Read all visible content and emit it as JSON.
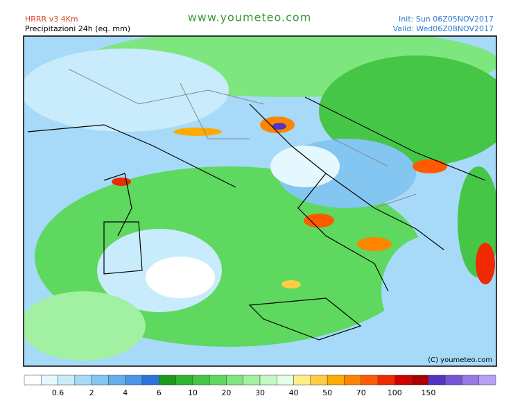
{
  "header": {
    "model": "HRRR v3 4Km",
    "product": "Precipitazioni 24h (eq. mm)",
    "site": "www.youmeteo.com",
    "init": "Init: Sun 06Z05NOV2017",
    "valid": "Valid: Wed06Z08NOV2017"
  },
  "map": {
    "credit": "(C) youmeteo.com"
  },
  "legend": {
    "colors": [
      "#ffffff",
      "#e6f8ff",
      "#c8ecfc",
      "#a6daf8",
      "#84c6f2",
      "#64aeee",
      "#4898ea",
      "#2a74e0",
      "#1a9a1a",
      "#2eb42e",
      "#46c646",
      "#5ed85e",
      "#7ee67e",
      "#a2f0a2",
      "#c4f8c4",
      "#e4fde4",
      "#ffee88",
      "#ffcc44",
      "#ffaa00",
      "#ff8400",
      "#ff5a00",
      "#f02a00",
      "#d00000",
      "#a80000",
      "#5434c4",
      "#7654d4",
      "#9878e4",
      "#b8a0f4"
    ],
    "labels": [
      "0.6",
      "2",
      "4",
      "6",
      "10",
      "20",
      "30",
      "40",
      "50",
      "70",
      "100",
      "150"
    ]
  }
}
